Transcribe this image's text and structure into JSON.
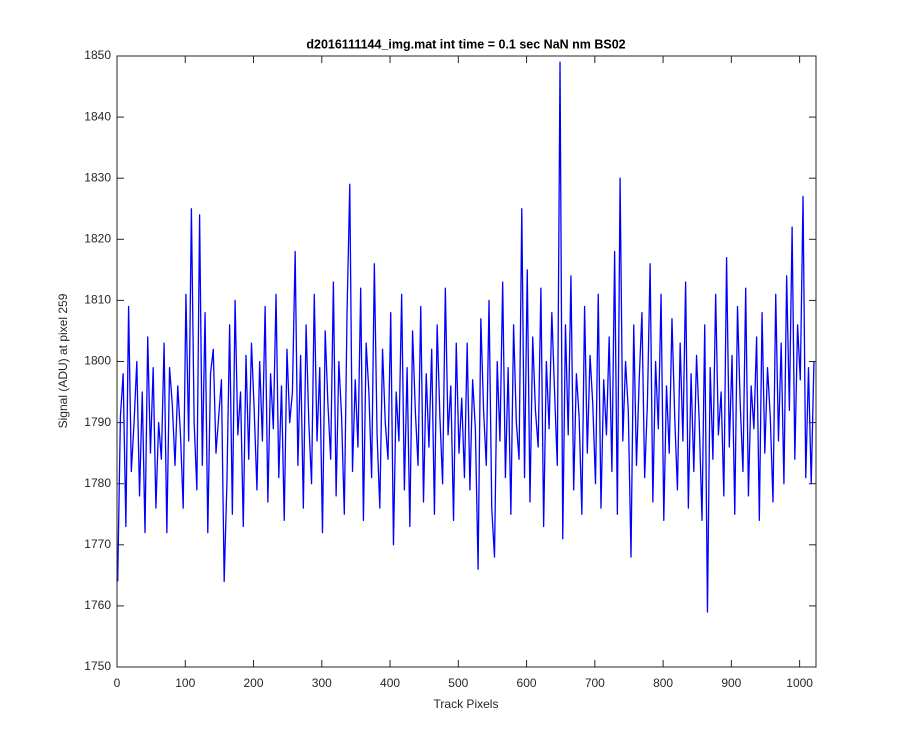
{
  "chart_data": {
    "type": "line",
    "title": "d2016111144_img.mat int time = 0.1 sec  NaN nm BS02",
    "x_label": "Track Pixels",
    "y_label": "Signal (ADU) at pixel 259",
    "xlim": [
      0,
      1024
    ],
    "ylim": [
      1750,
      1850
    ],
    "xticks": [
      0,
      100,
      200,
      300,
      400,
      500,
      600,
      700,
      800,
      900,
      1000
    ],
    "yticks": [
      1750,
      1760,
      1770,
      1780,
      1790,
      1800,
      1810,
      1820,
      1830,
      1840,
      1850
    ],
    "box": true,
    "series": [
      {
        "color": "#0000ff",
        "x": [
          1,
          5,
          9,
          13,
          17,
          21,
          25,
          29,
          33,
          37,
          41,
          45,
          49,
          53,
          57,
          61,
          65,
          69,
          73,
          77,
          81,
          85,
          89,
          93,
          97,
          101,
          105,
          109,
          113,
          117,
          121,
          125,
          129,
          133,
          137,
          141,
          145,
          149,
          153,
          157,
          161,
          165,
          169,
          173,
          177,
          181,
          185,
          189,
          193,
          197,
          201,
          205,
          209,
          213,
          217,
          221,
          225,
          229,
          233,
          237,
          241,
          245,
          249,
          253,
          257,
          261,
          265,
          269,
          273,
          277,
          281,
          285,
          289,
          293,
          297,
          301,
          305,
          309,
          313,
          317,
          321,
          325,
          329,
          333,
          337,
          341,
          345,
          349,
          353,
          357,
          361,
          365,
          369,
          373,
          377,
          381,
          385,
          389,
          393,
          397,
          401,
          405,
          409,
          413,
          417,
          421,
          425,
          429,
          433,
          437,
          441,
          445,
          449,
          453,
          457,
          461,
          465,
          469,
          473,
          477,
          481,
          485,
          489,
          493,
          497,
          501,
          505,
          509,
          513,
          517,
          521,
          525,
          529,
          533,
          537,
          541,
          545,
          549,
          553,
          557,
          561,
          565,
          569,
          573,
          577,
          581,
          585,
          589,
          593,
          597,
          601,
          605,
          609,
          613,
          617,
          621,
          625,
          629,
          633,
          637,
          641,
          645,
          649,
          653,
          657,
          661,
          665,
          669,
          673,
          677,
          681,
          685,
          689,
          693,
          697,
          701,
          705,
          709,
          713,
          717,
          721,
          725,
          729,
          733,
          737,
          741,
          745,
          749,
          753,
          757,
          761,
          765,
          769,
          773,
          777,
          781,
          785,
          789,
          793,
          797,
          801,
          805,
          809,
          813,
          817,
          821,
          825,
          829,
          833,
          837,
          841,
          845,
          849,
          853,
          857,
          861,
          865,
          869,
          873,
          877,
          881,
          885,
          889,
          893,
          897,
          901,
          905,
          909,
          913,
          917,
          921,
          925,
          929,
          933,
          937,
          941,
          945,
          949,
          953,
          957,
          961,
          965,
          969,
          973,
          977,
          981,
          985,
          989,
          993,
          997,
          1001,
          1005,
          1009,
          1013,
          1017,
          1021
        ],
        "values": [
          1764,
          1791,
          1798,
          1773,
          1809,
          1782,
          1790,
          1800,
          1778,
          1795,
          1772,
          1804,
          1785,
          1799,
          1776,
          1790,
          1784,
          1803,
          1772,
          1799,
          1793,
          1783,
          1796,
          1788,
          1776,
          1811,
          1787,
          1825,
          1790,
          1779,
          1824,
          1783,
          1808,
          1772,
          1798,
          1802,
          1785,
          1791,
          1797,
          1764,
          1780,
          1806,
          1775,
          1810,
          1788,
          1795,
          1773,
          1801,
          1784,
          1803,
          1792,
          1779,
          1800,
          1787,
          1809,
          1777,
          1798,
          1789,
          1811,
          1781,
          1796,
          1774,
          1802,
          1790,
          1795,
          1818,
          1783,
          1801,
          1776,
          1806,
          1790,
          1780,
          1811,
          1787,
          1799,
          1772,
          1805,
          1793,
          1784,
          1813,
          1778,
          1800,
          1791,
          1775,
          1808,
          1829,
          1782,
          1797,
          1786,
          1812,
          1774,
          1803,
          1795,
          1781,
          1816,
          1788,
          1776,
          1802,
          1790,
          1784,
          1808,
          1770,
          1795,
          1787,
          1811,
          1779,
          1799,
          1773,
          1805,
          1792,
          1783,
          1809,
          1777,
          1798,
          1786,
          1802,
          1775,
          1806,
          1791,
          1780,
          1812,
          1788,
          1796,
          1774,
          1803,
          1785,
          1794,
          1781,
          1803,
          1779,
          1797,
          1789,
          1766,
          1807,
          1792,
          1783,
          1810,
          1776,
          1768,
          1800,
          1787,
          1813,
          1781,
          1799,
          1775,
          1806,
          1790,
          1784,
          1825,
          1781,
          1815,
          1777,
          1804,
          1792,
          1786,
          1812,
          1773,
          1800,
          1789,
          1808,
          1795,
          1783,
          1849,
          1771,
          1806,
          1788,
          1814,
          1779,
          1798,
          1791,
          1775,
          1809,
          1785,
          1801,
          1793,
          1780,
          1811,
          1776,
          1797,
          1788,
          1804,
          1782,
          1818,
          1775,
          1830,
          1787,
          1800,
          1792,
          1768,
          1806,
          1783,
          1797,
          1808,
          1781,
          1793,
          1816,
          1777,
          1800,
          1789,
          1811,
          1774,
          1796,
          1785,
          1807,
          1791,
          1779,
          1803,
          1787,
          1813,
          1776,
          1798,
          1782,
          1801,
          1790,
          1774,
          1806,
          1759,
          1799,
          1784,
          1811,
          1788,
          1795,
          1778,
          1817,
          1786,
          1801,
          1775,
          1809,
          1793,
          1782,
          1812,
          1778,
          1796,
          1789,
          1804,
          1774,
          1808,
          1785,
          1799,
          1791,
          1777,
          1811,
          1787,
          1803,
          1780,
          1814,
          1792,
          1822,
          1784,
          1806,
          1797,
          1827,
          1781,
          1799,
          1780,
          1800
        ]
      }
    ]
  }
}
